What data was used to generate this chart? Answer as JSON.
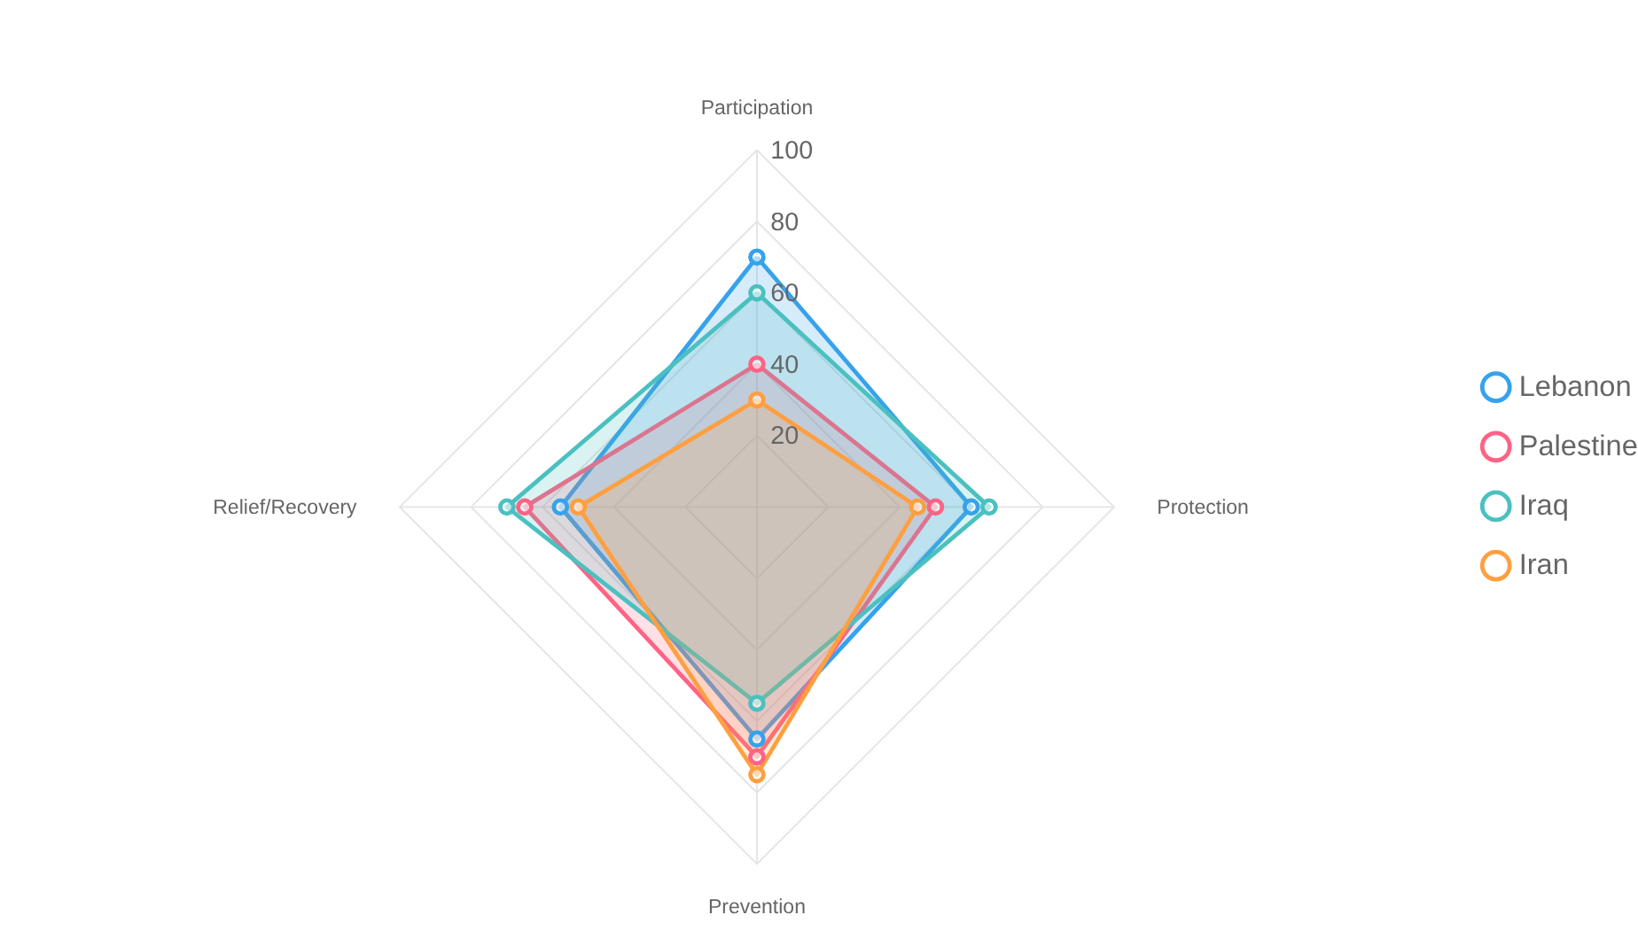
{
  "chart_data": {
    "type": "radar",
    "categories": [
      "Participation",
      "Protection",
      "Prevention",
      "Relief/Recovery"
    ],
    "series": [
      {
        "name": "Lebanon",
        "color": "#36a2eb",
        "values": [
          70,
          60,
          65,
          55
        ]
      },
      {
        "name": "Palestine",
        "color": "#ff6384",
        "values": [
          40,
          50,
          70,
          65
        ]
      },
      {
        "name": "Iraq",
        "color": "#4bc0c0",
        "values": [
          60,
          65,
          55,
          70
        ]
      },
      {
        "name": "Iran",
        "color": "#ff9f40",
        "values": [
          30,
          45,
          75,
          50
        ]
      }
    ],
    "ylim": [
      0,
      100
    ],
    "yticks": [
      20,
      40,
      60,
      80,
      100
    ],
    "grid": true,
    "legend": "right",
    "marker": "circle"
  }
}
